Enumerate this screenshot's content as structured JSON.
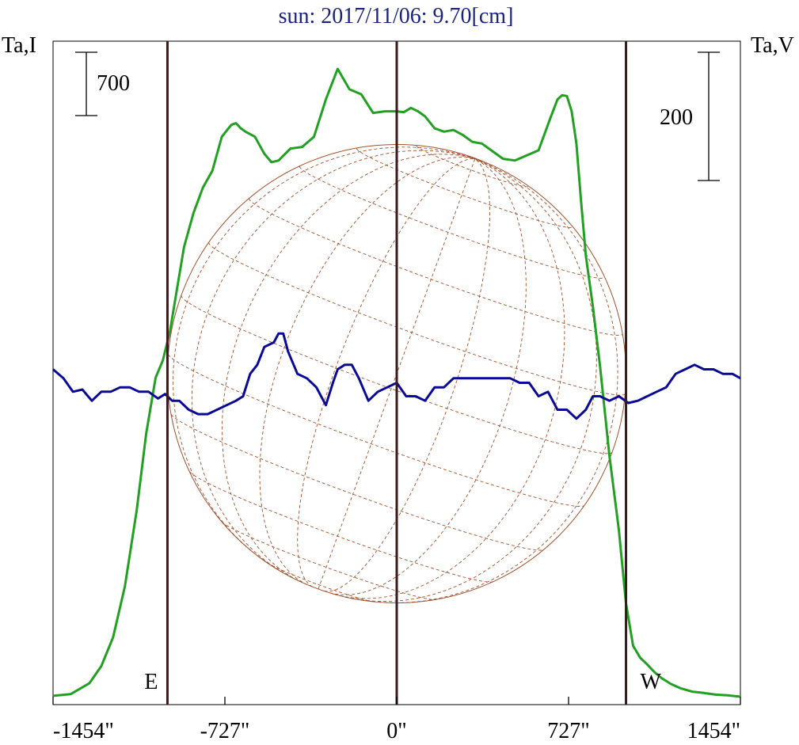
{
  "chart_data": {
    "type": "line",
    "title": "sun: 2017/11/06: 9.70[cm]",
    "left_axis_label": "Ta,I",
    "right_axis_label": "Ta,V",
    "scale_bar_left": "700",
    "scale_bar_right": "200",
    "xlim": [
      -1454,
      1454
    ],
    "x_ticks": [
      {
        "value": -1454,
        "label": "-1454\""
      },
      {
        "value": -727,
        "label": "-727\""
      },
      {
        "value": 0,
        "label": "0\""
      },
      {
        "value": 727,
        "label": "727\""
      },
      {
        "value": 1454,
        "label": "1454\""
      }
    ],
    "limb_lines": [
      {
        "value": -970,
        "label": "E"
      },
      {
        "value": 0,
        "label": ""
      },
      {
        "value": 970,
        "label": "W"
      }
    ],
    "solar_disk_radius_arcsec": 970,
    "grid": false,
    "colors": {
      "title": "#1a237e",
      "stokes_I": "#22a022",
      "stokes_V": "#0a0a96",
      "limb_lines": "#3a1a1a",
      "disk": "#a0522d",
      "frame": "#000000"
    },
    "series": [
      {
        "id": "stokes_I",
        "ylim": [
          0,
          3700
        ],
        "x": [
          -1454,
          -1380,
          -1300,
          -1250,
          -1200,
          -1150,
          -1100,
          -1060,
          -1020,
          -990,
          -960,
          -930,
          -900,
          -860,
          -820,
          -780,
          -740,
          -700,
          -680,
          -660,
          -640,
          -600,
          -560,
          -530,
          -500,
          -450,
          -400,
          -350,
          -300,
          -250,
          -200,
          -150,
          -100,
          -50,
          0,
          30,
          60,
          90,
          120,
          160,
          200,
          240,
          280,
          320,
          360,
          400,
          450,
          500,
          550,
          600,
          650,
          680,
          700,
          720,
          740,
          760,
          780,
          800,
          830,
          860,
          900,
          940,
          970,
          1000,
          1030,
          1060,
          1090,
          1120,
          1160,
          1200,
          1250,
          1300,
          1350,
          1400,
          1454
        ],
        "values": [
          5,
          15,
          80,
          180,
          350,
          650,
          1100,
          1550,
          1880,
          1980,
          2150,
          2400,
          2650,
          2850,
          3000,
          3100,
          3300,
          3370,
          3380,
          3350,
          3330,
          3300,
          3200,
          3150,
          3160,
          3230,
          3240,
          3300,
          3520,
          3700,
          3580,
          3550,
          3440,
          3450,
          3450,
          3445,
          3470,
          3450,
          3420,
          3350,
          3330,
          3340,
          3310,
          3270,
          3260,
          3220,
          3170,
          3160,
          3190,
          3220,
          3410,
          3520,
          3545,
          3540,
          3450,
          3260,
          2920,
          2600,
          2300,
          1950,
          1420,
          980,
          550,
          300,
          230,
          190,
          145,
          110,
          75,
          50,
          30,
          22,
          12,
          8,
          0
        ]
      },
      {
        "id": "stokes_V",
        "ylim": [
          -700,
          700
        ],
        "x": [
          -1454,
          -1410,
          -1370,
          -1330,
          -1290,
          -1250,
          -1210,
          -1170,
          -1130,
          -1090,
          -1050,
          -1010,
          -980,
          -950,
          -920,
          -880,
          -840,
          -800,
          -760,
          -720,
          -680,
          -650,
          -620,
          -590,
          -560,
          -520,
          -500,
          -480,
          -460,
          -420,
          -380,
          -340,
          -300,
          -270,
          -250,
          -220,
          -190,
          -160,
          -120,
          -80,
          -40,
          0,
          40,
          80,
          120,
          160,
          200,
          240,
          280,
          320,
          360,
          400,
          440,
          480,
          520,
          560,
          600,
          640,
          680,
          720,
          760,
          800,
          830,
          860,
          900,
          940,
          980,
          1020,
          1060,
          1100,
          1140,
          1180,
          1220,
          1260,
          1300,
          1340,
          1380,
          1420,
          1454
        ],
        "values": [
          30,
          10,
          -20,
          -15,
          -40,
          -20,
          -20,
          -10,
          -10,
          -20,
          -20,
          -35,
          -25,
          -40,
          -40,
          -60,
          -70,
          -70,
          -60,
          -50,
          -40,
          -30,
          20,
          40,
          80,
          90,
          110,
          110,
          70,
          20,
          10,
          -10,
          -50,
          0,
          30,
          40,
          40,
          10,
          -40,
          -20,
          -10,
          0,
          -30,
          -30,
          -40,
          -10,
          -10,
          10,
          10,
          10,
          10,
          10,
          10,
          10,
          0,
          0,
          -30,
          -20,
          -60,
          -60,
          -80,
          -60,
          -30,
          -30,
          -40,
          -30,
          -45,
          -40,
          -30,
          -20,
          -10,
          20,
          30,
          40,
          30,
          30,
          20,
          20,
          10
        ]
      }
    ]
  }
}
